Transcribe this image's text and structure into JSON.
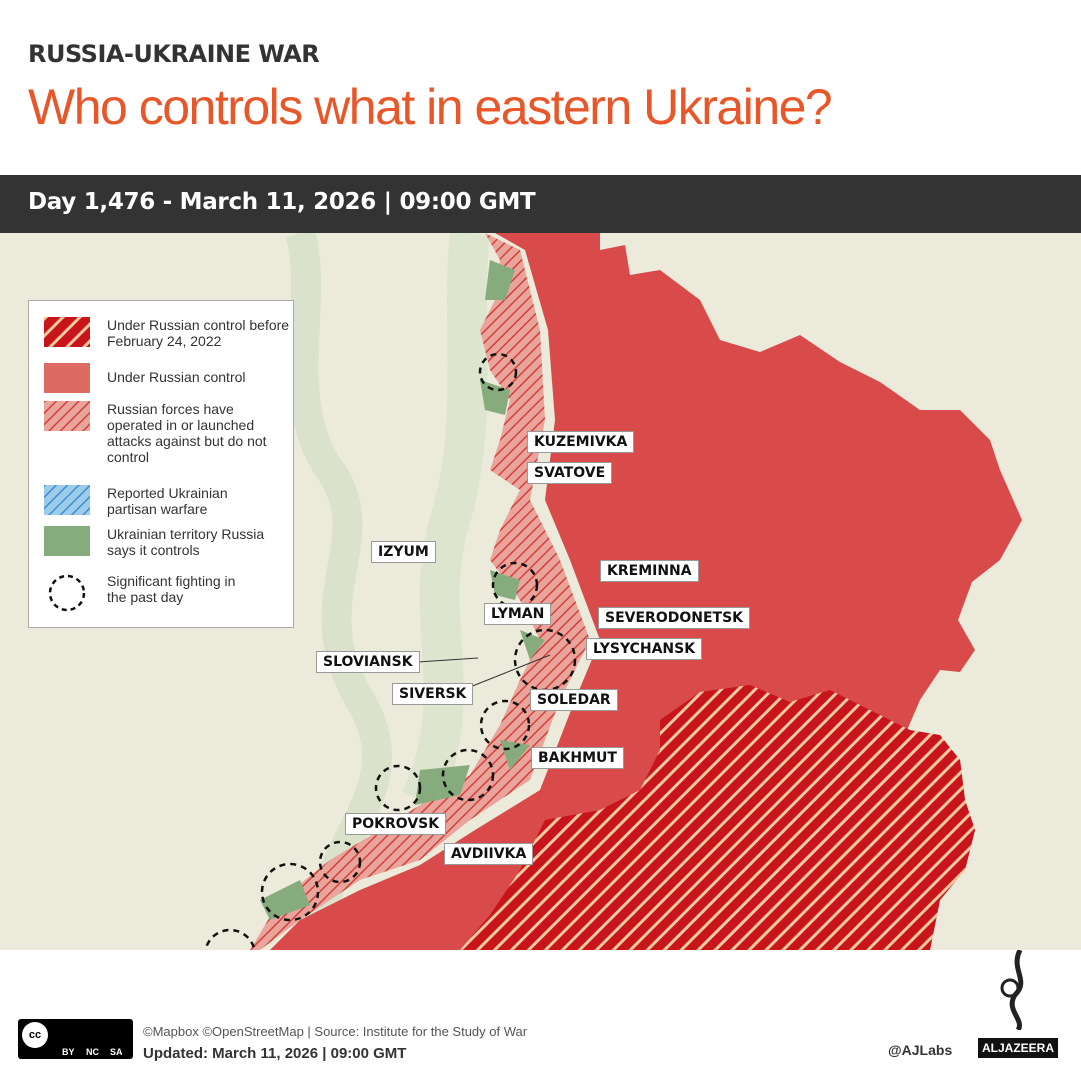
{
  "header": {
    "kicker": "RUSSIA-UKRAINE WAR",
    "title": "Who controls what in eastern Ukraine?",
    "date_bar": "Day 1,476 - March 11, 2026  |  09:00 GMT"
  },
  "colors": {
    "title": "#e8572a",
    "russian_control": "#d94b4b",
    "pre_2022": "#c8141b",
    "ukrainian_claimed": "#86ab7c",
    "partisan": "#6aaede",
    "map_bg": "#eceadb"
  },
  "legend": [
    {
      "label": "Under Russian control before February 24, 2022",
      "swatch": "pre-2022-hatch"
    },
    {
      "label": "Under Russian control",
      "swatch": "solid-red"
    },
    {
      "label": "Russian forces have operated in or launched attacks against but do not control",
      "swatch": "light-red-hatch"
    },
    {
      "label": "Reported Ukrainian partisan warfare",
      "swatch": "blue-hatch"
    },
    {
      "label": "Ukrainian territory Russia says it controls",
      "swatch": "green"
    },
    {
      "label": "Significant fighting in the past day",
      "swatch": "dashed-circle"
    }
  ],
  "places": [
    "KUZEMIVKA",
    "SVATOVE",
    "IZYUM",
    "KREMINNA",
    "LYMAN",
    "SEVERODONETSK",
    "SLOVIANSK",
    "LYSYCHANSK",
    "SIVERSK",
    "SOLEDAR",
    "BAKHMUT",
    "POKROVSK",
    "AVDIIVKA"
  ],
  "footer": {
    "credits": "©Mapbox ©OpenStreetMap | Source: Institute for the Study of War",
    "updated": "Updated: March 11, 2026  |  09:00 GMT",
    "handle": "@AJLabs",
    "brand": "ALJAZEERA",
    "license": [
      "BY",
      "NC",
      "SA"
    ]
  }
}
